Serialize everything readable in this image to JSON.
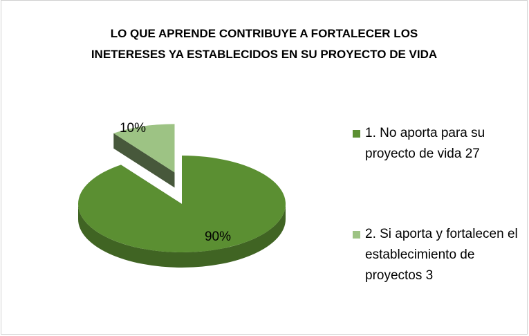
{
  "chart_data": {
    "type": "pie3d",
    "title": "LO QUE APRENDE CONTRIBUYE A FORTALECER  LOS INETERESES YA ESTABLECIDOS EN SU PROYECTO DE VIDA",
    "categories": [
      "1. No aporta para su proyecto de vida 27",
      "2. Si aporta  y fortalecen el establecimiento de proyectos 3"
    ],
    "values": [
      90,
      10
    ],
    "value_labels": [
      "90%",
      "10%"
    ],
    "colors": [
      "#5b8f32",
      "#9dc384"
    ],
    "legend": "right"
  }
}
